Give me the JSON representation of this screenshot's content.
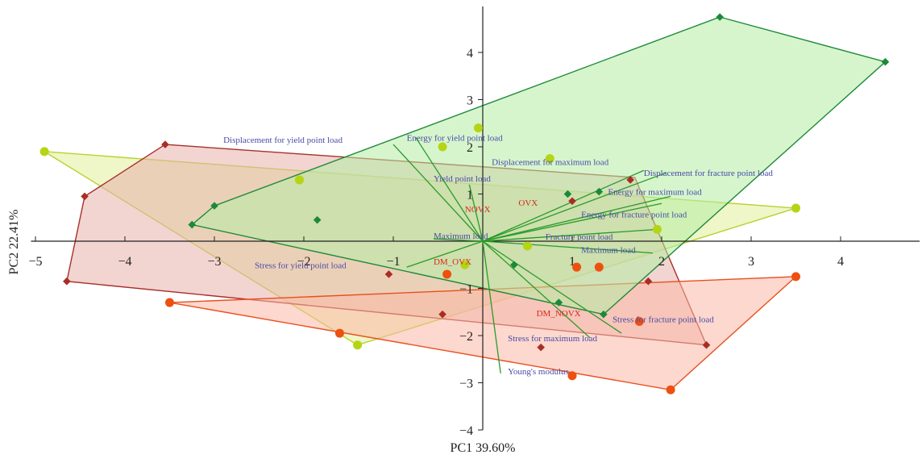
{
  "chart_data": {
    "type": "scatter",
    "subtype": "pca-biplot",
    "title": "",
    "xlabel": "PC1 39.60%",
    "ylabel": "PC2 22.41%",
    "xlim": [
      -5,
      5
    ],
    "ylim": [
      -4,
      5
    ],
    "x_ticks": [
      -5,
      -4,
      -3,
      -2,
      -1,
      1,
      2,
      3,
      4
    ],
    "x_tick_labels": [
      "−5",
      "−4",
      "−3",
      "−2",
      "−1",
      "1",
      "2",
      "3",
      "4"
    ],
    "y_ticks": [
      -4,
      -3,
      -2,
      -1,
      1,
      2,
      3,
      4
    ],
    "y_tick_labels": [
      "−4",
      "−3",
      "−2",
      "−1",
      "1",
      "2",
      "3",
      "4"
    ],
    "grid": false,
    "colors": {
      "axis": "#222222",
      "variable_text": "#4a4aa8",
      "group_text": "#d42a1e",
      "loading_line": "#2a9a2a"
    },
    "groups": [
      {
        "key": "yellow",
        "marker": "circle",
        "color": "#b5d414",
        "fill": "#e2ef9a",
        "stroke": "#b9d230",
        "hull": [
          [
            -4.9,
            1.9
          ],
          [
            3.5,
            0.7
          ],
          [
            -1.4,
            -2.2
          ]
        ],
        "points": [
          [
            -4.9,
            1.9
          ],
          [
            -2.05,
            1.3
          ],
          [
            -0.45,
            2.0
          ],
          [
            -0.05,
            2.4
          ],
          [
            0.75,
            1.75
          ],
          [
            -0.2,
            -0.5
          ],
          [
            0.5,
            -0.1
          ],
          [
            1.95,
            0.25
          ],
          [
            3.5,
            0.7
          ],
          [
            -1.4,
            -2.2
          ]
        ]
      },
      {
        "key": "darkred",
        "marker": "diamond",
        "color": "#a82e24",
        "fill": "#e8b0ac",
        "stroke": "#a8302a",
        "hull": [
          [
            -3.55,
            2.05
          ],
          [
            1.7,
            1.35
          ],
          [
            2.5,
            -2.2
          ],
          [
            -4.65,
            -0.85
          ],
          [
            -4.45,
            0.95
          ]
        ],
        "points": [
          [
            -3.55,
            2.05
          ],
          [
            -4.45,
            0.95
          ],
          [
            -4.65,
            -0.85
          ],
          [
            -1.05,
            -0.7
          ],
          [
            -0.45,
            -1.55
          ],
          [
            0.65,
            -2.25
          ],
          [
            1.0,
            0.85
          ],
          [
            1.65,
            1.3
          ],
          [
            1.85,
            -0.85
          ],
          [
            2.5,
            -2.2
          ]
        ]
      },
      {
        "key": "red",
        "marker": "circle",
        "color": "#ee5010",
        "fill": "#fbb8a6",
        "stroke": "#e85020",
        "hull": [
          [
            -3.5,
            -1.3
          ],
          [
            3.5,
            -0.75
          ],
          [
            2.1,
            -3.15
          ]
        ],
        "points": [
          [
            -3.5,
            -1.3
          ],
          [
            -1.6,
            -1.95
          ],
          [
            -0.4,
            -0.7
          ],
          [
            1.05,
            -0.55
          ],
          [
            1.3,
            -0.55
          ],
          [
            1.75,
            -1.7
          ],
          [
            1.0,
            -2.85
          ],
          [
            2.1,
            -3.15
          ],
          [
            3.5,
            -0.75
          ]
        ]
      },
      {
        "key": "green",
        "marker": "diamond",
        "color": "#1a8a3a",
        "fill": "#b4eda4",
        "stroke": "#1f8a3a",
        "hull": [
          [
            2.65,
            4.75
          ],
          [
            4.5,
            3.8
          ],
          [
            1.35,
            -1.55
          ],
          [
            -3.25,
            0.35
          ],
          [
            -3.0,
            0.75
          ]
        ],
        "points": [
          [
            2.65,
            4.75
          ],
          [
            4.5,
            3.8
          ],
          [
            -3.0,
            0.75
          ],
          [
            -3.25,
            0.35
          ],
          [
            -1.85,
            0.45
          ],
          [
            0.35,
            -0.5
          ],
          [
            0.85,
            -1.3
          ],
          [
            0.95,
            1.0
          ],
          [
            1.3,
            1.05
          ],
          [
            1.35,
            -1.55
          ]
        ]
      }
    ],
    "loadings": [
      {
        "label": "Displacement for yield point load",
        "x": -1.0,
        "y": 2.05
      },
      {
        "label": "Energy for yield point load",
        "x": -0.75,
        "y": 2.2
      },
      {
        "label": "Displacement for maximum load",
        "x": 2.05,
        "y": 1.45
      },
      {
        "label": "Yield point load",
        "x": -0.15,
        "y": 1.2
      },
      {
        "label": "Displacement for fracture point load",
        "x": 1.8,
        "y": 1.5
      },
      {
        "label": "Energy for maximum load",
        "x": 2.1,
        "y": 0.95
      },
      {
        "label": "Energy for fracture point load",
        "x": 2.0,
        "y": 0.8
      },
      {
        "label": "Maximum load",
        "x": -0.55,
        "y": 0.05
      },
      {
        "label": "Fracture point load",
        "x": 1.95,
        "y": 0.25
      },
      {
        "label": "Maximum load",
        "x": 1.9,
        "y": -0.25
      },
      {
        "label": "Stress for yield point load",
        "x": -0.85,
        "y": -0.55
      },
      {
        "label": "Stress for fracture point load",
        "x": 1.55,
        "y": -1.95
      },
      {
        "label": "Stress for maximum load",
        "x": 1.2,
        "y": -2.05
      },
      {
        "label": "Young's modulus",
        "x": 0.2,
        "y": -2.8
      }
    ],
    "variable_labels": [
      {
        "text": "Displacement for yield point load",
        "x": -2.9,
        "y": 2.15
      },
      {
        "text": "Energy for yield point load",
        "x": -0.85,
        "y": 2.2
      },
      {
        "text": "Displacement for maximum load",
        "x": 0.1,
        "y": 1.68
      },
      {
        "text": "Yield point load",
        "x": -0.55,
        "y": 1.33
      },
      {
        "text": "Displacement for fracture point load",
        "x": 1.8,
        "y": 1.45
      },
      {
        "text": "Energy for maximum load",
        "x": 1.4,
        "y": 1.05
      },
      {
        "text": "Energy for fracture point load",
        "x": 1.1,
        "y": 0.57
      },
      {
        "text": "Maximum load",
        "x": -0.55,
        "y": 0.12
      },
      {
        "text": "Fracture point load",
        "x": 0.7,
        "y": 0.1
      },
      {
        "text": "Maximum load",
        "x": 1.1,
        "y": -0.18
      },
      {
        "text": "Stress for yield point load",
        "x": -2.55,
        "y": -0.5
      },
      {
        "text": "Stress for fracture point load",
        "x": 1.45,
        "y": -1.65
      },
      {
        "text": "Stress for maximum load",
        "x": 0.28,
        "y": -2.05
      },
      {
        "text": "Young's modulus",
        "x": 0.28,
        "y": -2.75
      }
    ],
    "group_labels": [
      {
        "text": "OVX",
        "x": 0.4,
        "y": 0.82
      },
      {
        "text": "NOVX",
        "x": -0.2,
        "y": 0.68
      },
      {
        "text": "DM_OVX",
        "x": -0.55,
        "y": -0.43
      },
      {
        "text": "DM_NOVX",
        "x": 0.6,
        "y": -1.52
      }
    ]
  }
}
